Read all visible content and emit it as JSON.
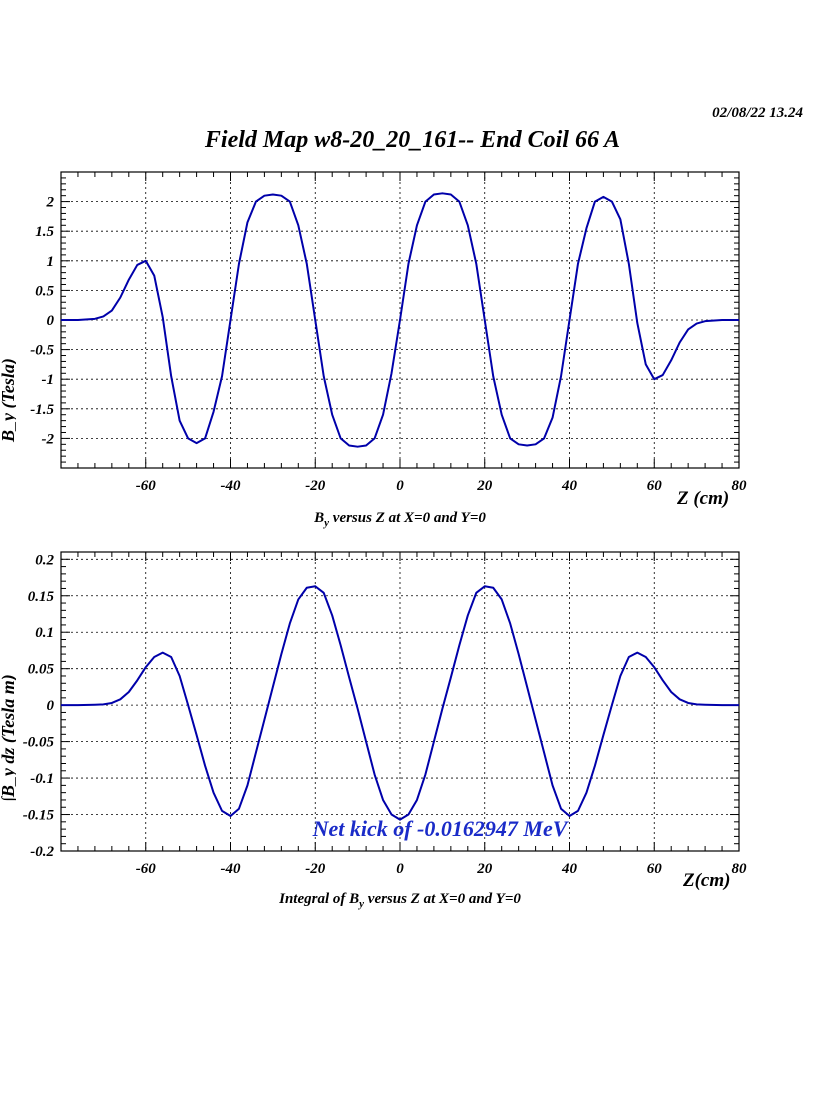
{
  "header": {
    "datestamp": "02/08/22   13.24",
    "title": "Field Map w8-20_20_161-- End Coil 66 A"
  },
  "colors": {
    "curve": "#0000aa",
    "annotation": "#1a2bc8",
    "axis": "#000000"
  },
  "chart_data": [
    {
      "type": "line",
      "title": "",
      "xlabel": "Z (cm)",
      "ylabel": "B_y (Tesla)",
      "caption_main": "B",
      "caption_sub": "y",
      "caption_rest": " versus Z at X=0 and Y=0",
      "xlim": [
        -80,
        80
      ],
      "ylim": [
        -2.5,
        2.5
      ],
      "grid": true,
      "x_ticks": [
        -60,
        -40,
        -20,
        0,
        20,
        40,
        60,
        80
      ],
      "y_ticks": [
        -2,
        -1.5,
        -1,
        -0.5,
        0,
        0.5,
        1,
        1.5,
        2
      ],
      "y_tick_labels": [
        "-2",
        "-1.5",
        "-1",
        "-0.5",
        "0",
        "0.5",
        "1",
        "1.5",
        "2"
      ],
      "series": [
        {
          "x": [
            -80,
            -76,
            -72,
            -70,
            -68,
            -66,
            -64,
            -62,
            -60,
            -58,
            -56,
            -54,
            -52,
            -50,
            -48,
            -46,
            -44,
            -42,
            -40,
            -38,
            -36,
            -34,
            -32,
            -30,
            -28,
            -26,
            -24,
            -22,
            -20,
            -18,
            -16,
            -14,
            -12,
            -10,
            -8,
            -6,
            -4,
            -2,
            0,
            2,
            4,
            6,
            8,
            10,
            12,
            14,
            16,
            18,
            20,
            22,
            24,
            26,
            28,
            30,
            32,
            34,
            36,
            38,
            40,
            42,
            44,
            46,
            48,
            50,
            52,
            54,
            56,
            58,
            60,
            62,
            64,
            66,
            68,
            70,
            72,
            76,
            80
          ],
          "y": [
            0,
            0,
            0.02,
            0.06,
            0.16,
            0.38,
            0.68,
            0.93,
            1.0,
            0.75,
            0.05,
            -0.95,
            -1.7,
            -2.0,
            -2.08,
            -2.0,
            -1.55,
            -0.95,
            0,
            0.95,
            1.65,
            2.0,
            2.1,
            2.12,
            2.1,
            2.0,
            1.6,
            0.95,
            0,
            -0.95,
            -1.6,
            -2.0,
            -2.12,
            -2.14,
            -2.12,
            -2.0,
            -1.6,
            -0.9,
            0,
            0.95,
            1.6,
            2.0,
            2.12,
            2.14,
            2.12,
            2.0,
            1.6,
            0.95,
            0,
            -0.95,
            -1.6,
            -2.0,
            -2.1,
            -2.12,
            -2.1,
            -2.0,
            -1.65,
            -0.95,
            0,
            0.95,
            1.55,
            2.0,
            2.08,
            2.0,
            1.7,
            0.95,
            -0.05,
            -0.75,
            -1.0,
            -0.93,
            -0.68,
            -0.38,
            -0.16,
            -0.06,
            -0.02,
            0,
            0
          ]
        }
      ]
    },
    {
      "type": "line",
      "title": "",
      "xlabel": "Z(cm)",
      "ylabel": "∫B_y dz (Tesla m)",
      "caption_main": "Integral of B",
      "caption_sub": "y",
      "caption_rest": " versus Z at X=0 and Y=0",
      "xlim": [
        -80,
        80
      ],
      "ylim": [
        -0.2,
        0.21
      ],
      "grid": true,
      "x_ticks": [
        -60,
        -40,
        -20,
        0,
        20,
        40,
        60,
        80
      ],
      "y_ticks": [
        -0.2,
        -0.15,
        -0.1,
        -0.05,
        0,
        0.05,
        0.1,
        0.15,
        0.2
      ],
      "y_tick_labels": [
        "-0.2",
        "-0.15",
        "-0.1",
        "-0.05",
        "0",
        "0.05",
        "0.1",
        "0.15",
        "0.2"
      ],
      "annotation": "Net kick of -0.0162947 MeV",
      "series": [
        {
          "x": [
            -80,
            -76,
            -72,
            -70,
            -68,
            -66,
            -64,
            -62,
            -60,
            -58,
            -56,
            -54,
            -52,
            -50,
            -48,
            -46,
            -44,
            -42,
            -40,
            -38,
            -36,
            -34,
            -32,
            -30,
            -28,
            -26,
            -24,
            -22,
            -20,
            -18,
            -16,
            -14,
            -12,
            -10,
            -8,
            -6,
            -4,
            -2,
            0,
            2,
            4,
            6,
            8,
            10,
            12,
            14,
            16,
            18,
            20,
            22,
            24,
            26,
            28,
            30,
            32,
            34,
            36,
            38,
            40,
            42,
            44,
            46,
            48,
            50,
            52,
            54,
            56,
            58,
            60,
            62,
            64,
            66,
            68,
            70,
            72,
            76,
            80
          ],
          "y": [
            0,
            0,
            0.0005,
            0.001,
            0.003,
            0.008,
            0.018,
            0.034,
            0.052,
            0.066,
            0.072,
            0.066,
            0.04,
            0.0,
            -0.041,
            -0.083,
            -0.12,
            -0.145,
            -0.152,
            -0.142,
            -0.11,
            -0.065,
            -0.02,
            0.025,
            0.07,
            0.112,
            0.145,
            0.161,
            0.163,
            0.154,
            0.123,
            0.082,
            0.038,
            -0.005,
            -0.05,
            -0.095,
            -0.13,
            -0.15,
            -0.157,
            -0.15,
            -0.13,
            -0.095,
            -0.05,
            -0.005,
            0.038,
            0.082,
            0.123,
            0.154,
            0.163,
            0.161,
            0.145,
            0.112,
            0.07,
            0.025,
            -0.02,
            -0.065,
            -0.11,
            -0.142,
            -0.152,
            -0.145,
            -0.12,
            -0.083,
            -0.041,
            0.0,
            0.04,
            0.066,
            0.072,
            0.066,
            0.052,
            0.034,
            0.018,
            0.008,
            0.003,
            0.001,
            0.0005,
            0,
            0
          ]
        }
      ]
    }
  ]
}
